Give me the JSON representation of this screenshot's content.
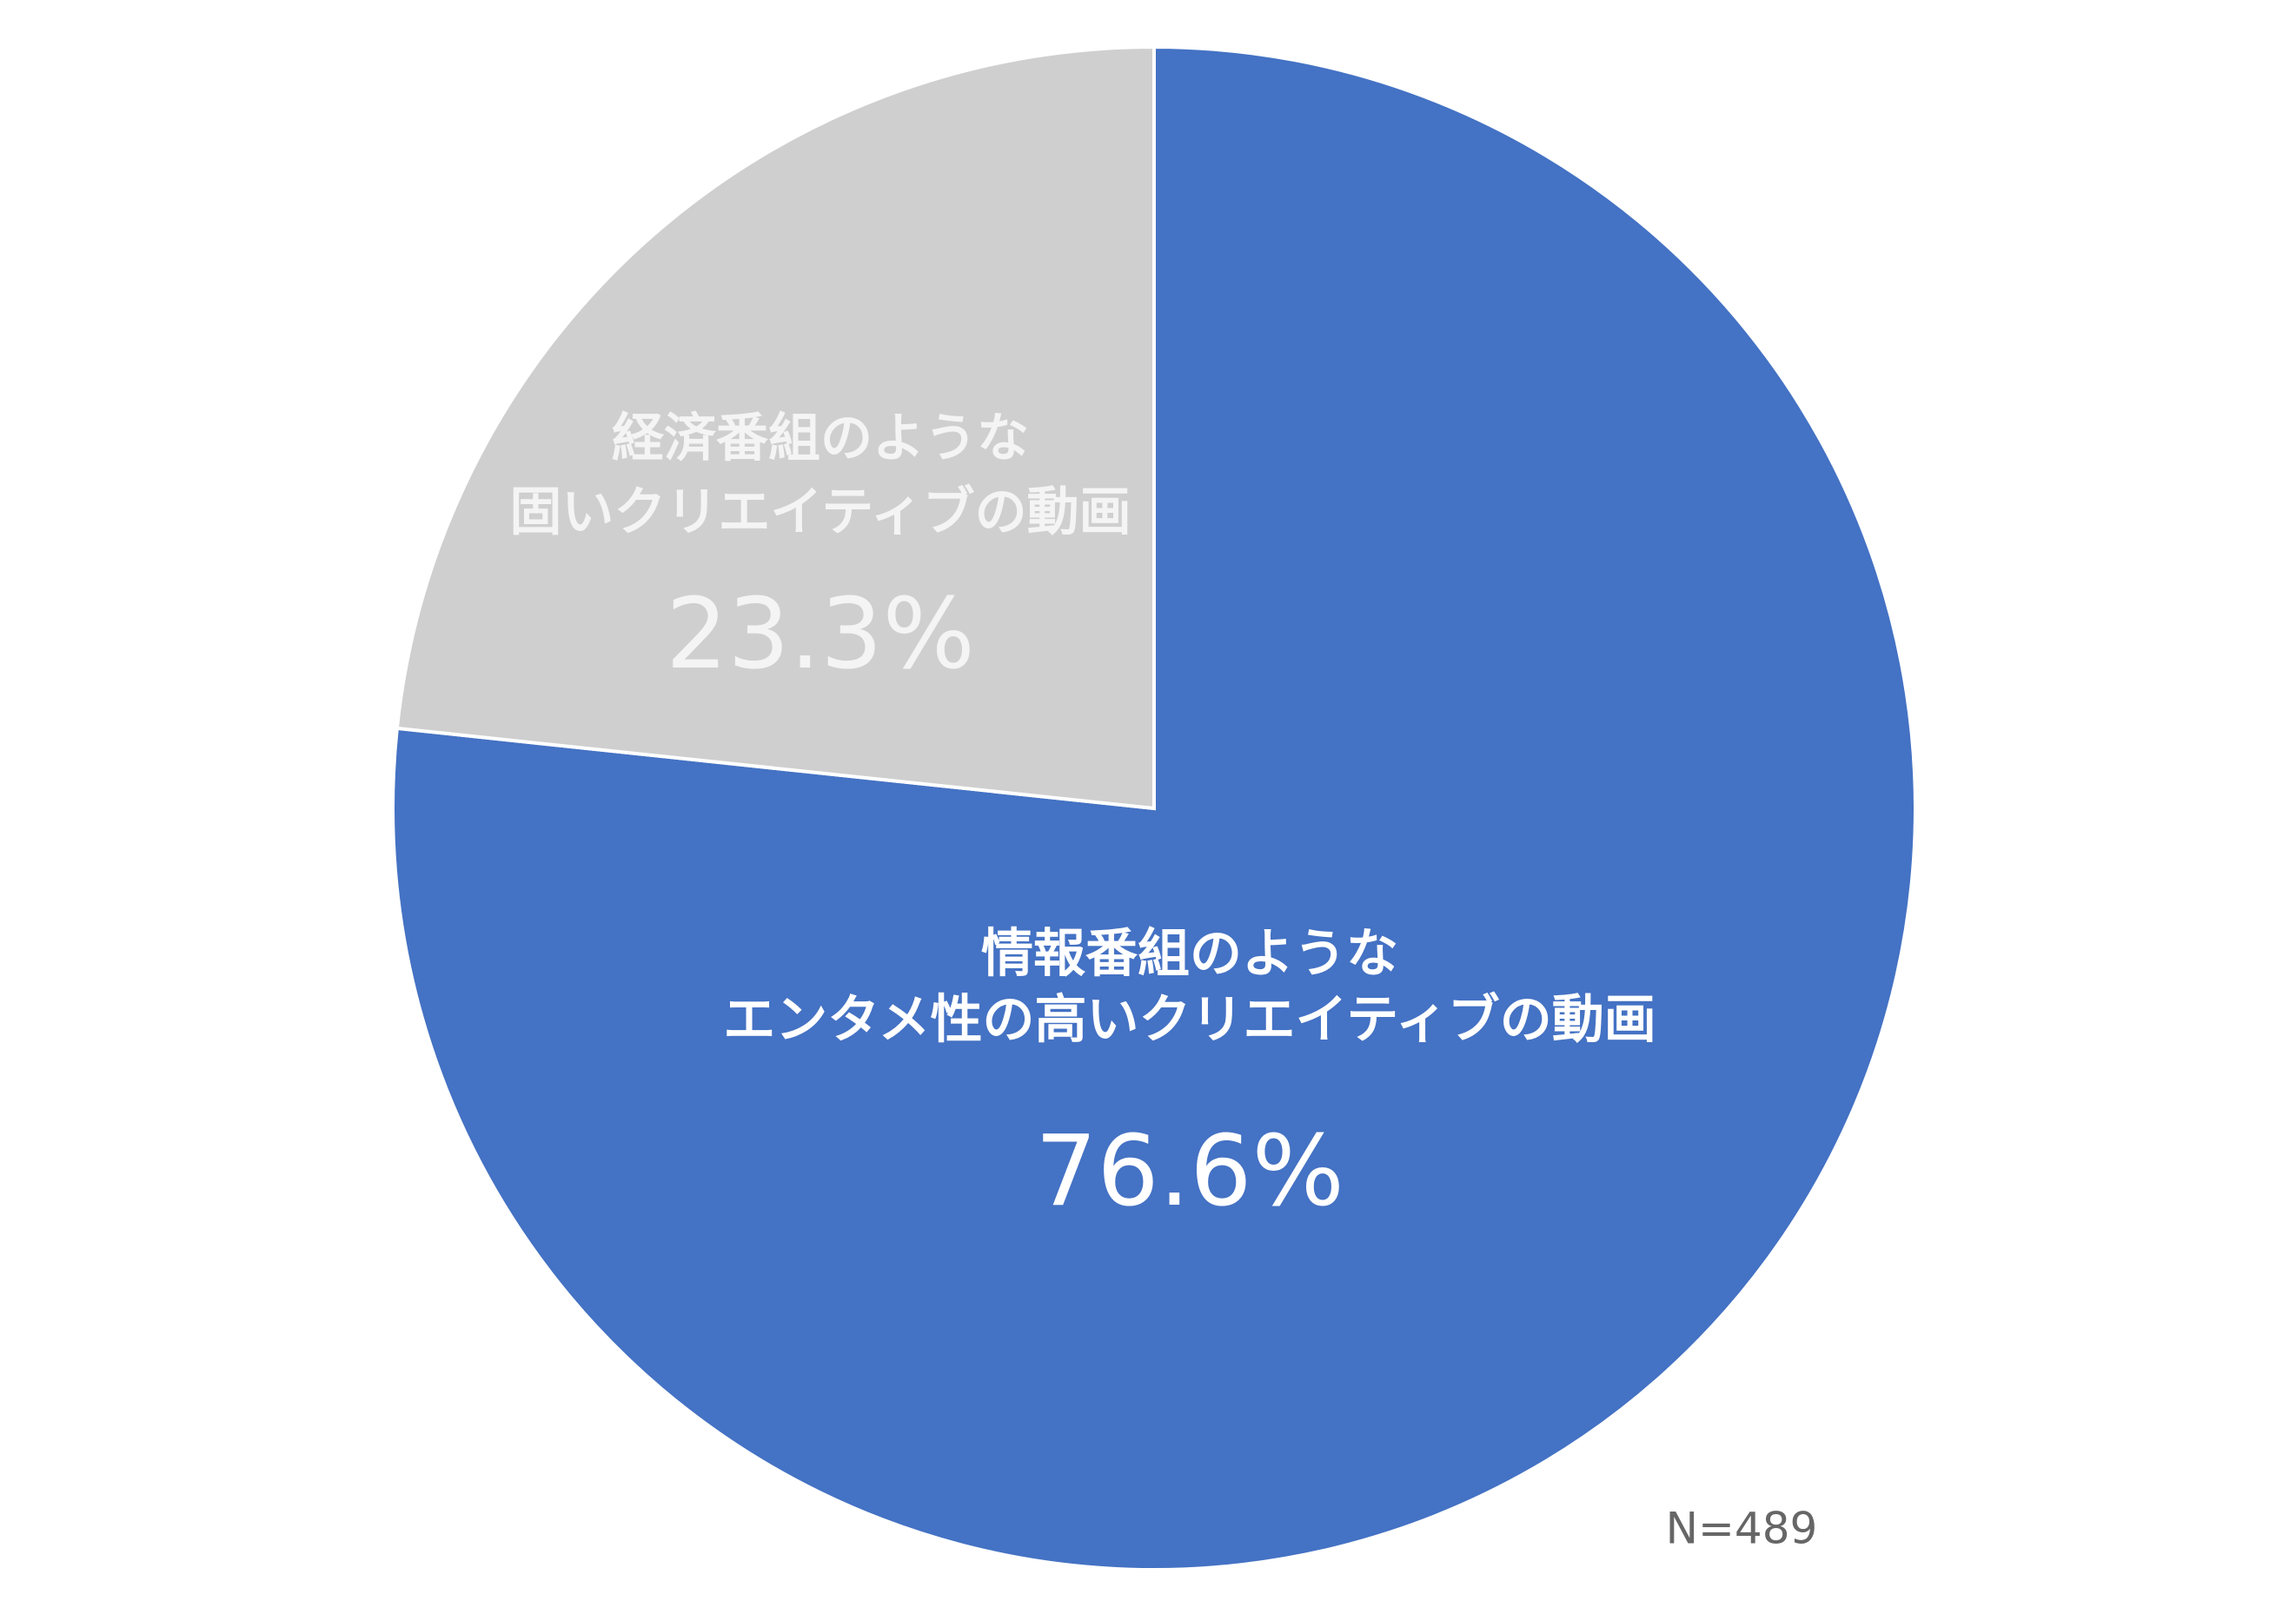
{
  "chart_data": {
    "type": "pie",
    "categories": [
      [
        "情報番組のような",
        "エンタメ性の高いクリエイティブの動画"
      ],
      [
        "経済番組のような",
        "固いクリエイティブの動画"
      ]
    ],
    "values": [
      76.6,
      23.3
    ],
    "value_labels": [
      "76.6%",
      "23.3%"
    ],
    "colors": [
      "#4472c4",
      "#d0cfd0"
    ],
    "annotation": "N=489"
  }
}
